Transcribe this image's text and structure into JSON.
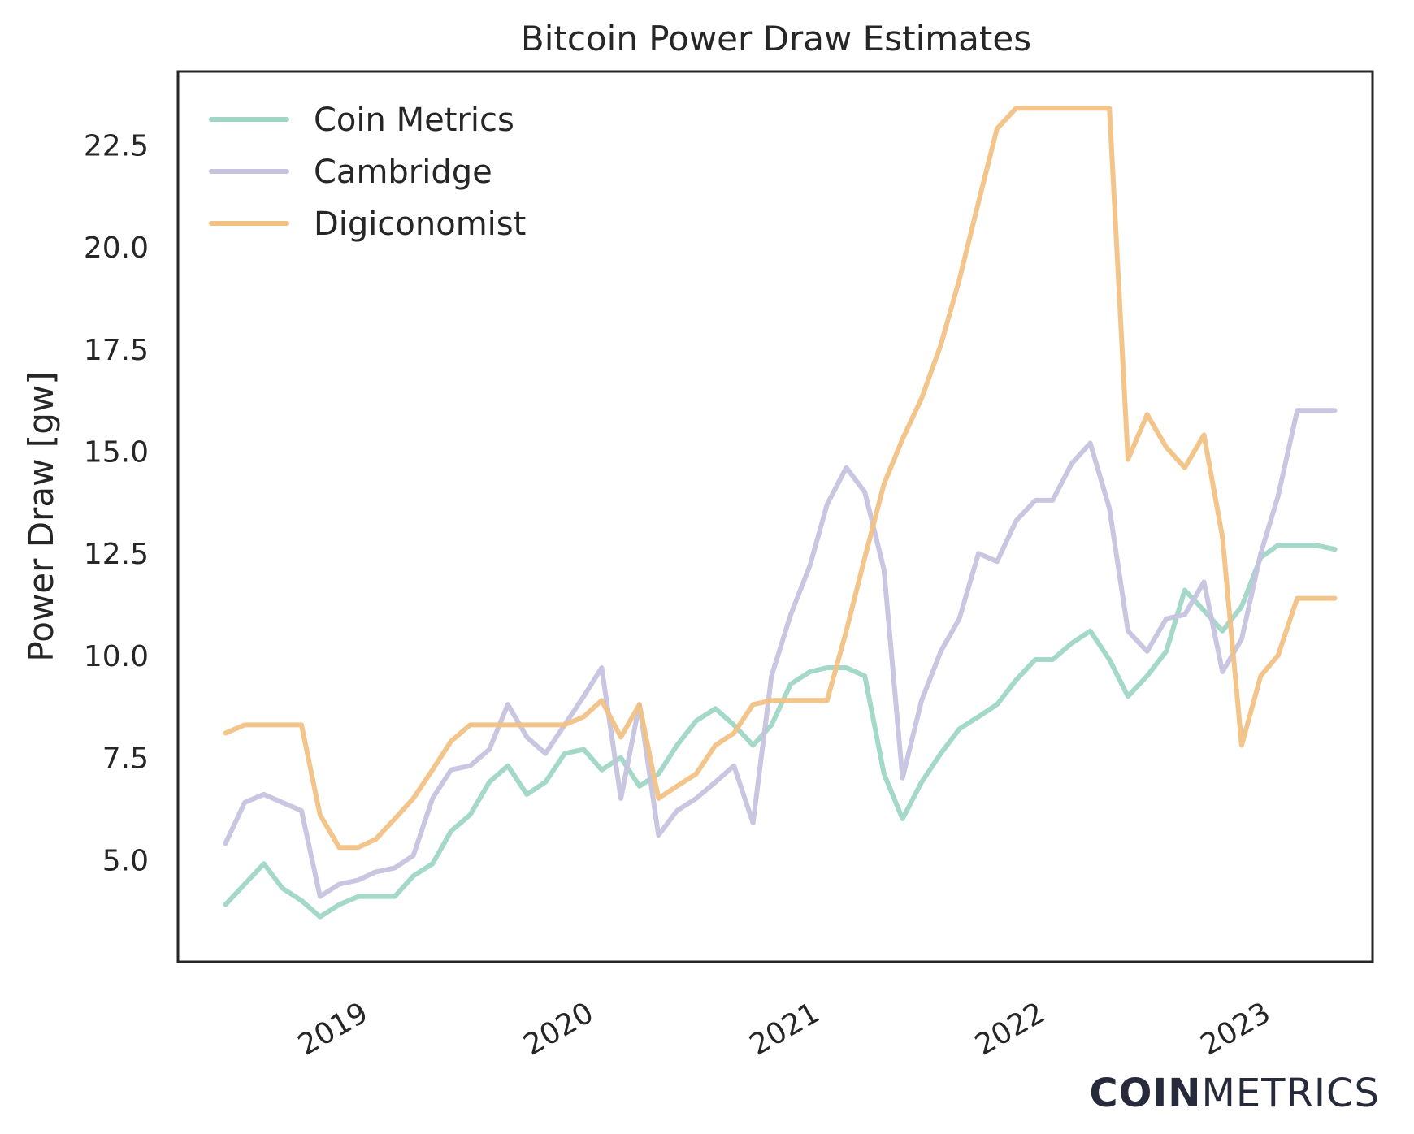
{
  "chart_data": {
    "type": "line",
    "title": "Bitcoin Power Draw Estimates",
    "xlabel": "",
    "ylabel": "Power Draw [gw]",
    "x_ticks": [
      "2019",
      "2020",
      "2021",
      "2022",
      "2023"
    ],
    "y_ticks": [
      "5.0",
      "7.5",
      "10.0",
      "12.5",
      "15.0",
      "17.5",
      "20.0",
      "22.5"
    ],
    "xlim": [
      "2018-04-15",
      "2023-08-01"
    ],
    "ylim": [
      2.5,
      24.3
    ],
    "grid": false,
    "legend": "top-left",
    "x": [
      "2018-07-01",
      "2018-08-01",
      "2018-09-01",
      "2018-10-01",
      "2018-11-01",
      "2018-12-01",
      "2019-01-01",
      "2019-02-01",
      "2019-03-01",
      "2019-04-01",
      "2019-05-01",
      "2019-06-01",
      "2019-07-01",
      "2019-08-01",
      "2019-09-01",
      "2019-10-01",
      "2019-11-01",
      "2019-12-01",
      "2020-01-01",
      "2020-02-01",
      "2020-03-01",
      "2020-04-01",
      "2020-05-01",
      "2020-06-01",
      "2020-07-01",
      "2020-08-01",
      "2020-09-01",
      "2020-10-01",
      "2020-11-01",
      "2020-12-01",
      "2021-01-01",
      "2021-02-01",
      "2021-03-01",
      "2021-04-01",
      "2021-05-01",
      "2021-06-01",
      "2021-07-01",
      "2021-08-01",
      "2021-09-01",
      "2021-10-01",
      "2021-11-01",
      "2021-12-01",
      "2022-01-01",
      "2022-02-01",
      "2022-03-01",
      "2022-04-01",
      "2022-05-01",
      "2022-06-01",
      "2022-07-01",
      "2022-08-01",
      "2022-09-01",
      "2022-10-01",
      "2022-11-01",
      "2022-12-01",
      "2023-01-01",
      "2023-02-01",
      "2023-03-01",
      "2023-04-01",
      "2023-05-01",
      "2023-06-01"
    ],
    "series": [
      {
        "name": "Coin Metrics",
        "color": "#9fd6c6",
        "values": [
          3.9,
          4.4,
          4.9,
          4.3,
          4.0,
          3.6,
          3.9,
          4.1,
          4.1,
          4.1,
          4.6,
          4.9,
          5.7,
          6.1,
          6.9,
          7.3,
          6.6,
          6.9,
          7.6,
          7.7,
          7.2,
          7.5,
          6.8,
          7.1,
          7.8,
          8.4,
          8.7,
          8.3,
          7.8,
          8.3,
          9.3,
          9.6,
          9.7,
          9.7,
          9.5,
          7.1,
          6.0,
          6.9,
          7.6,
          8.2,
          8.5,
          8.8,
          9.4,
          9.9,
          9.9,
          10.3,
          10.6,
          9.9,
          9.0,
          9.5,
          10.1,
          11.6,
          11.1,
          10.6,
          11.2,
          12.4,
          12.7,
          12.7,
          12.7,
          12.6
        ]
      },
      {
        "name": "Cambridge",
        "color": "#c6c3df",
        "values": [
          5.4,
          6.4,
          6.6,
          6.4,
          6.2,
          4.1,
          4.4,
          4.5,
          4.7,
          4.8,
          5.1,
          6.5,
          7.2,
          7.3,
          7.7,
          8.8,
          8.0,
          7.6,
          8.3,
          9.0,
          9.7,
          6.5,
          8.8,
          5.6,
          6.2,
          6.5,
          6.9,
          7.3,
          5.9,
          9.5,
          11.0,
          12.2,
          13.7,
          14.6,
          14.0,
          12.1,
          7.0,
          8.9,
          10.1,
          10.9,
          12.5,
          12.3,
          13.3,
          13.8,
          13.8,
          14.7,
          15.2,
          13.6,
          10.6,
          10.1,
          10.9,
          11.0,
          11.8,
          9.6,
          10.4,
          12.5,
          13.9,
          16.0,
          16.0,
          16.0
        ]
      },
      {
        "name": "Digiconomist",
        "color": "#f2c285",
        "values": [
          8.1,
          8.3,
          8.3,
          8.3,
          8.3,
          6.1,
          5.3,
          5.3,
          5.5,
          6.0,
          6.5,
          7.2,
          7.9,
          8.3,
          8.3,
          8.3,
          8.3,
          8.3,
          8.3,
          8.5,
          8.9,
          8.0,
          8.8,
          6.5,
          6.8,
          7.1,
          7.8,
          8.1,
          8.8,
          8.9,
          8.9,
          8.9,
          8.9,
          10.6,
          12.4,
          14.2,
          15.3,
          16.3,
          17.6,
          19.2,
          21.1,
          22.9,
          23.4,
          23.4,
          23.4,
          23.4,
          23.4,
          23.4,
          14.8,
          15.9,
          15.1,
          14.6,
          15.4,
          12.9,
          7.8,
          9.5,
          10.0,
          11.4,
          11.4,
          11.4
        ]
      }
    ]
  },
  "brand": {
    "bold": "COIN",
    "light": "METRICS"
  }
}
